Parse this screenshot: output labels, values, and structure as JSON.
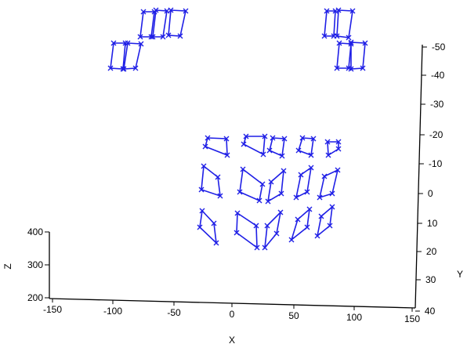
{
  "chart_data": {
    "type": "3d-scatter-wireframe",
    "series_color": "#1f1fe6",
    "marker": "x",
    "axes": {
      "x": {
        "label": "X",
        "ticks": [
          "-150",
          "-100",
          "-50",
          "0",
          "50",
          "100",
          "150"
        ]
      },
      "y": {
        "label": "Y",
        "ticks": [
          "-50",
          "-40",
          "-30",
          "-20",
          "-10",
          "0",
          "10",
          "20",
          "30",
          "40"
        ]
      },
      "z": {
        "label": "Z",
        "ticks": [
          "400",
          "300",
          "200"
        ]
      }
    },
    "quads": [
      [
        [
          183,
          15
        ],
        [
          197,
          15
        ],
        [
          193,
          47
        ],
        [
          179,
          47
        ]
      ],
      [
        [
          199,
          13
        ],
        [
          213,
          14
        ],
        [
          208,
          47
        ],
        [
          195,
          47
        ]
      ],
      [
        [
          218,
          13
        ],
        [
          237,
          14
        ],
        [
          230,
          46
        ],
        [
          215,
          45
        ]
      ],
      [
        [
          145,
          55
        ],
        [
          160,
          55
        ],
        [
          157,
          88
        ],
        [
          141,
          87
        ]
      ],
      [
        [
          163,
          55
        ],
        [
          180,
          56
        ],
        [
          173,
          87
        ],
        [
          158,
          88
        ]
      ],
      [
        [
          417,
          14
        ],
        [
          428,
          14
        ],
        [
          426,
          46
        ],
        [
          414,
          46
        ]
      ],
      [
        [
          432,
          13
        ],
        [
          450,
          14
        ],
        [
          445,
          48
        ],
        [
          430,
          46
        ]
      ],
      [
        [
          433,
          55
        ],
        [
          448,
          56
        ],
        [
          445,
          87
        ],
        [
          430,
          87
        ]
      ],
      [
        [
          448,
          54
        ],
        [
          466,
          55
        ],
        [
          463,
          87
        ],
        [
          448,
          88
        ]
      ],
      [
        [
          265,
          176
        ],
        [
          289,
          177
        ],
        [
          290,
          198
        ],
        [
          262,
          187
        ]
      ],
      [
        [
          314,
          174
        ],
        [
          338,
          174
        ],
        [
          336,
          197
        ],
        [
          311,
          184
        ]
      ],
      [
        [
          348,
          176
        ],
        [
          363,
          177
        ],
        [
          360,
          199
        ],
        [
          344,
          192
        ]
      ],
      [
        [
          386,
          176
        ],
        [
          400,
          177
        ],
        [
          397,
          198
        ],
        [
          381,
          192
        ]
      ],
      [
        [
          418,
          181
        ],
        [
          432,
          181
        ],
        [
          432,
          190
        ],
        [
          419,
          198
        ]
      ],
      [
        [
          260,
          212
        ],
        [
          278,
          226
        ],
        [
          281,
          250
        ],
        [
          257,
          242
        ]
      ],
      [
        [
          310,
          216
        ],
        [
          335,
          235
        ],
        [
          331,
          256
        ],
        [
          306,
          245
        ]
      ],
      [
        [
          346,
          232
        ],
        [
          362,
          218
        ],
        [
          359,
          247
        ],
        [
          342,
          257
        ]
      ],
      [
        [
          384,
          223
        ],
        [
          397,
          214
        ],
        [
          392,
          245
        ],
        [
          378,
          252
        ]
      ],
      [
        [
          414,
          225
        ],
        [
          431,
          217
        ],
        [
          424,
          247
        ],
        [
          408,
          252
        ]
      ],
      [
        [
          258,
          269
        ],
        [
          273,
          285
        ],
        [
          276,
          310
        ],
        [
          255,
          290
        ]
      ],
      [
        [
          303,
          272
        ],
        [
          327,
          288
        ],
        [
          328,
          316
        ],
        [
          302,
          297
        ]
      ],
      [
        [
          341,
          288
        ],
        [
          358,
          271
        ],
        [
          353,
          298
        ],
        [
          338,
          316
        ]
      ],
      [
        [
          380,
          280
        ],
        [
          395,
          267
        ],
        [
          392,
          290
        ],
        [
          372,
          306
        ]
      ],
      [
        [
          410,
          276
        ],
        [
          424,
          264
        ],
        [
          421,
          288
        ],
        [
          405,
          301
        ]
      ]
    ]
  }
}
